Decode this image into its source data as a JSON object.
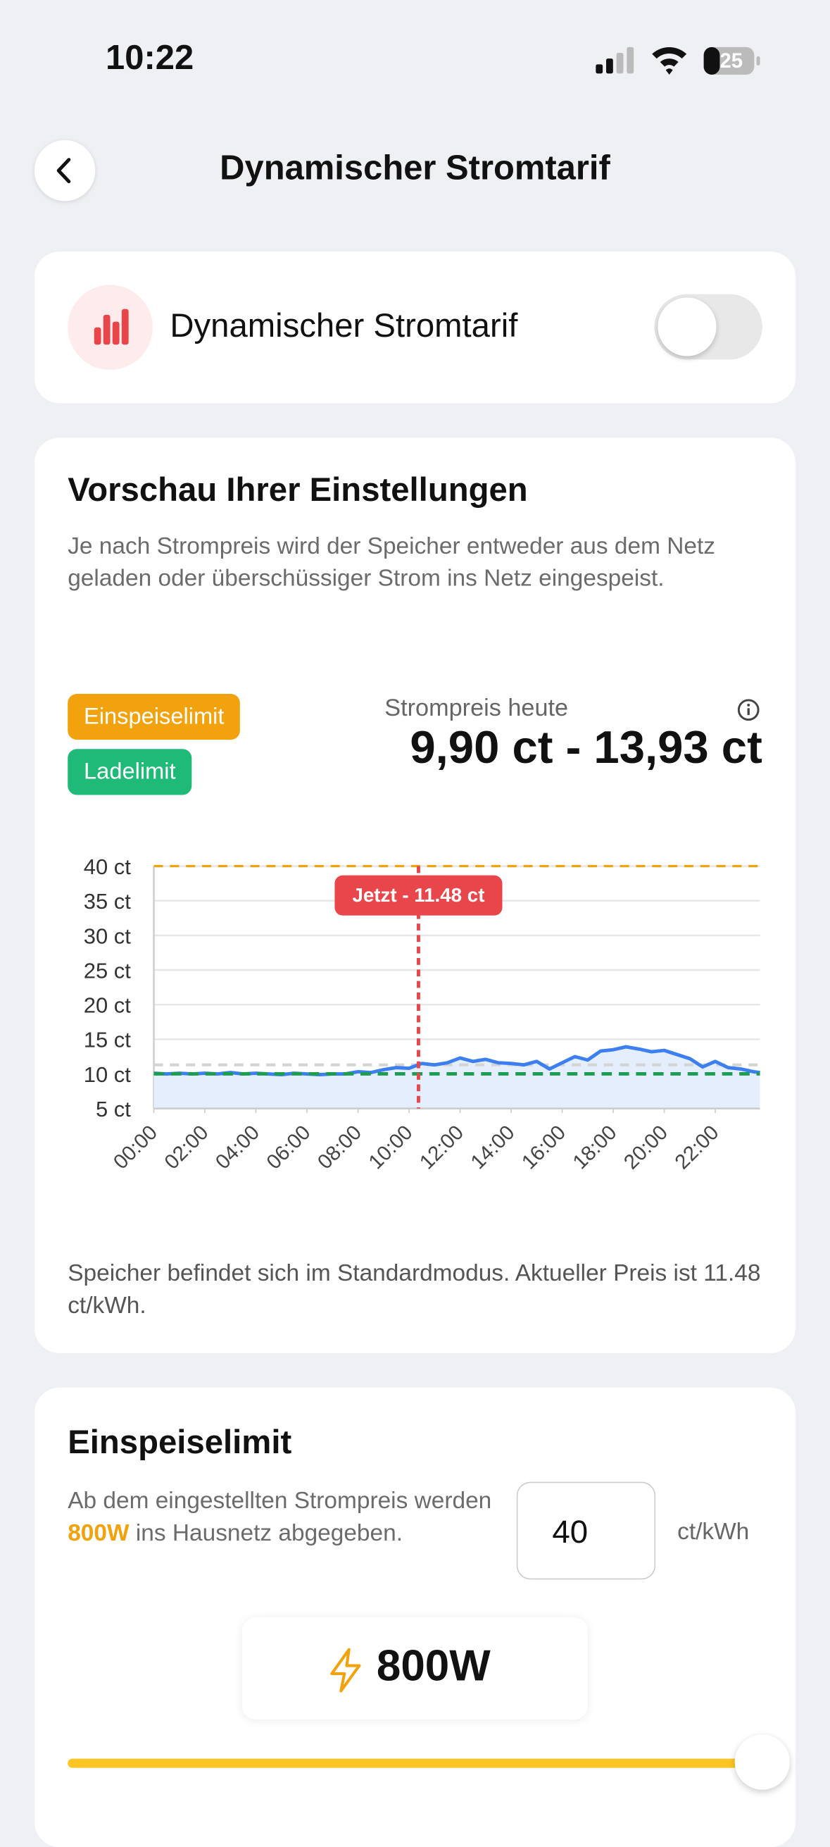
{
  "status_bar": {
    "time": "10:22",
    "battery": "25"
  },
  "header": {
    "title": "Dynamischer Stromtarif"
  },
  "toggle_card": {
    "label": "Dynamischer Stromtarif",
    "enabled": false
  },
  "preview_card": {
    "title": "Vorschau Ihrer Einstellungen",
    "description": "Je nach Strompreis wird der Speicher entweder aus dem Netz geladen oder überschüssiger Strom ins Netz eingespeist.",
    "badges": [
      "Einspeiselimit",
      "Ladelimit"
    ],
    "price_label": "Strompreis heute",
    "price_range": "9,90 ct - 13,93 ct",
    "status_text": "Speicher befindet sich im Standardmodus. Aktueller Preis ist 11.48 ct/kWh."
  },
  "chart_data": {
    "type": "line",
    "x": [
      0,
      0.5,
      1,
      1.5,
      2,
      2.5,
      3,
      3.5,
      4,
      4.5,
      5,
      5.5,
      6,
      6.5,
      7,
      7.5,
      8,
      8.5,
      9,
      9.5,
      10,
      10.5,
      11,
      11.5,
      12,
      12.5,
      13,
      13.5,
      14,
      14.5,
      15,
      15.5,
      16,
      16.5,
      17,
      17.5,
      18,
      18.5,
      19,
      19.5,
      20,
      20.5,
      21,
      21.5,
      22,
      22.5,
      23,
      23.5,
      23.75
    ],
    "series": [
      {
        "color": "#3b7ff0",
        "area_color": "#e5eefc",
        "values": [
          10.1,
          10.0,
          10.1,
          10.0,
          10.1,
          10.0,
          10.2,
          10.0,
          10.1,
          10.0,
          9.9,
          10.1,
          10.0,
          9.9,
          10.0,
          10.0,
          10.3,
          10.2,
          10.6,
          10.9,
          10.8,
          11.5,
          11.3,
          11.6,
          12.3,
          11.8,
          12.1,
          11.6,
          11.5,
          11.3,
          11.8,
          10.7,
          11.6,
          12.5,
          12.0,
          13.3,
          13.5,
          13.9,
          13.6,
          13.2,
          13.4,
          12.8,
          12.2,
          11.0,
          11.8,
          10.9,
          10.7,
          10.3,
          10.2
        ]
      }
    ],
    "xlim": [
      0,
      23.75
    ],
    "xticks": [
      {
        "value": 0,
        "label": "00:00"
      },
      {
        "value": 2,
        "label": "02:00"
      },
      {
        "value": 4,
        "label": "04:00"
      },
      {
        "value": 6,
        "label": "06:00"
      },
      {
        "value": 8,
        "label": "08:00"
      },
      {
        "value": 10,
        "label": "10:00"
      },
      {
        "value": 12,
        "label": "12:00"
      },
      {
        "value": 14,
        "label": "14:00"
      },
      {
        "value": 16,
        "label": "16:00"
      },
      {
        "value": 18,
        "label": "18:00"
      },
      {
        "value": 20,
        "label": "20:00"
      },
      {
        "value": 22,
        "label": "22:00"
      }
    ],
    "ylim": [
      5,
      40
    ],
    "yticks": [
      {
        "value": 5,
        "label": "5 ct"
      },
      {
        "value": 10,
        "label": "10 ct"
      },
      {
        "value": 15,
        "label": "15 ct"
      },
      {
        "value": 20,
        "label": "20 ct"
      },
      {
        "value": 25,
        "label": "25 ct"
      },
      {
        "value": 30,
        "label": "30 ct"
      },
      {
        "value": 35,
        "label": "35 ct"
      },
      {
        "value": 40,
        "label": "40 ct"
      }
    ],
    "grid": true,
    "feed_in_limit": 40,
    "feed_in_color": "#f2a20c",
    "charge_limit": 10,
    "charge_color": "#1c9e52",
    "average": 11.3,
    "average_color": "#d4d4d4",
    "now": {
      "x": 10.37,
      "label": "Jetzt - 11.48 ct",
      "color": "#e8464a"
    }
  },
  "feed_in_card": {
    "title": "Einspeiselimit",
    "description_parts": [
      "Ab dem eingestellten Strompreis werden ",
      "800W",
      " ins Hausnetz abgegeben."
    ],
    "input_value": "40",
    "unit": "ct/kWh",
    "power": "800W"
  }
}
